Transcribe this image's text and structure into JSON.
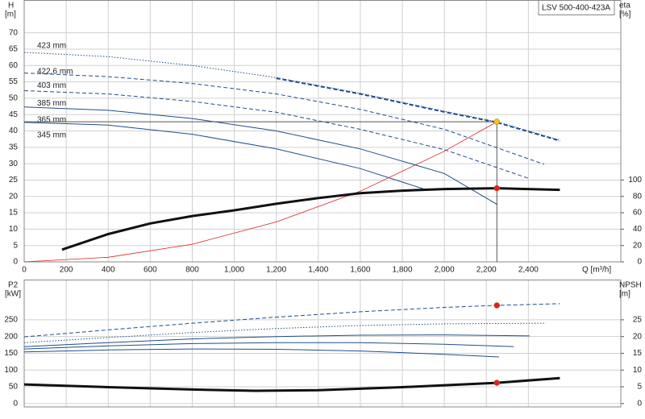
{
  "chart_data": [
    {
      "type": "line",
      "title": "LSV 500-400-423A",
      "ylabel": "H",
      "yunit": "[m]",
      "y2label": "eta",
      "y2unit": "[%]",
      "xlabel": "Q [m³/h]",
      "xlim": [
        0,
        2840
      ],
      "xticks": [
        0,
        200,
        400,
        600,
        800,
        {
          "value": 1000,
          "label": "1,000"
        },
        {
          "value": 1200,
          "label": "1,200"
        },
        {
          "value": 1400,
          "label": "1,400"
        },
        {
          "value": 1600,
          "label": "1,600"
        },
        {
          "value": 1800,
          "label": "1,800"
        },
        {
          "value": 2000,
          "label": "2,000"
        },
        {
          "value": 2200,
          "label": "2,200"
        },
        {
          "value": 2400,
          "label": "2,400"
        }
      ],
      "ylim": [
        0,
        80
      ],
      "yticks": [
        0,
        5,
        10,
        15,
        20,
        25,
        30,
        35,
        40,
        45,
        50,
        55,
        60,
        65,
        70
      ],
      "y2lim": [
        0,
        320
      ],
      "y2ticks": [
        0,
        20,
        40,
        60,
        80,
        100
      ],
      "grid": true,
      "series": [
        {
          "name": "423 mm",
          "color": "#1f4e8c",
          "style": "dotted",
          "x": [
            0,
            400,
            800,
            1200,
            1600,
            2000,
            2250,
            2550
          ],
          "values": [
            64,
            62.7,
            60,
            56.3,
            51.5,
            46,
            42.8,
            37.2
          ]
        },
        {
          "name": "422.6 mm",
          "color": "#1f4e8c",
          "style": "dashed",
          "width": 2,
          "x": [
            0,
            400,
            800,
            1200,
            1600,
            2000,
            2250,
            2550
          ],
          "values": [
            null,
            null,
            null,
            56.1,
            51.3,
            45.8,
            42.6,
            37
          ]
        },
        {
          "name": "403 mm",
          "color": "#1f4e8c",
          "style": "dashed",
          "x": [
            0,
            400,
            800,
            1200,
            1600,
            2000,
            2475
          ],
          "values": [
            57.7,
            56.6,
            54.5,
            51.3,
            46.6,
            40.5,
            29.8
          ]
        },
        {
          "name": "385 mm",
          "color": "#1f4e8c",
          "style": "dashed",
          "x": [
            0,
            400,
            800,
            1200,
            1600,
            2000,
            2406
          ],
          "values": [
            52.3,
            51.3,
            49,
            45.7,
            40.5,
            34.3,
            25.4
          ]
        },
        {
          "name": "365 mm",
          "color": "#1f4e8c",
          "style": "solid",
          "x": [
            0,
            400,
            800,
            1200,
            1600,
            2000,
            2253
          ],
          "values": [
            47.3,
            46.3,
            43.8,
            40,
            34.5,
            27,
            17.5
          ]
        },
        {
          "name": "345 mm",
          "color": "#1f4e8c",
          "style": "solid",
          "x": [
            0,
            400,
            800,
            1200,
            1600,
            1900
          ],
          "values": [
            42.6,
            41.8,
            39,
            34.5,
            28.5,
            22.3
          ]
        },
        {
          "color": "#e02020",
          "style": "solid",
          "width": 0.8,
          "x": [
            0,
            400,
            800,
            1200,
            1600,
            2000,
            2250
          ],
          "values": [
            0,
            1.4,
            5.4,
            12.2,
            21.6,
            33.8,
            42.8
          ]
        },
        {
          "color": "#111111",
          "style": "solid",
          "width": 3,
          "axis": "y2",
          "x": [
            180,
            400,
            600,
            800,
            1000,
            1200,
            1400,
            1600,
            1800,
            2000,
            2250,
            2550
          ],
          "values": [
            15,
            34,
            47,
            56,
            63,
            71,
            78,
            84,
            87,
            89,
            90,
            88
          ]
        }
      ],
      "markers": [
        {
          "x": 2250,
          "y": 42.8,
          "color": "#f5c518",
          "guides": true
        },
        {
          "x": 2250,
          "y": 90,
          "axis": "y2",
          "color": "#e02020"
        }
      ]
    },
    {
      "type": "line",
      "ylabel": "P2",
      "yunit": "[kW]",
      "y2label": "NPSH",
      "y2unit": "[m]",
      "xlim": [
        0,
        2840
      ],
      "xticks": [
        0,
        200,
        400,
        600,
        800,
        1000,
        1200,
        1400,
        1600,
        1800,
        2000,
        2200,
        2400
      ],
      "ylim": [
        -10,
        370
      ],
      "yticks": [
        0,
        50,
        100,
        150,
        200,
        250
      ],
      "y2lim": [
        -1,
        37
      ],
      "y2ticks": [
        0,
        5,
        10,
        15,
        20,
        25
      ],
      "grid": true,
      "series": [
        {
          "color": "#1f4e8c",
          "style": "dashed",
          "x": [
            0,
            400,
            800,
            1200,
            1600,
            2000,
            2250,
            2550
          ],
          "values": [
            199,
            220,
            240,
            258,
            274,
            287,
            293,
            298
          ]
        },
        {
          "color": "#1f4e8c",
          "style": "dotted",
          "x": [
            0,
            400,
            800,
            1200,
            1600,
            2000,
            2475
          ],
          "values": [
            182,
            197,
            212,
            224,
            233,
            238,
            240
          ]
        },
        {
          "color": "#1f4e8c",
          "style": "solid",
          "x": [
            0,
            400,
            800,
            1200,
            1600,
            2000,
            2406
          ],
          "values": [
            170,
            182,
            193,
            200,
            204,
            205,
            202
          ]
        },
        {
          "color": "#1f4e8c",
          "style": "solid",
          "x": [
            0,
            400,
            800,
            1200,
            1600,
            2000,
            2330
          ],
          "values": [
            163,
            172,
            179,
            182,
            182,
            177,
            170
          ]
        },
        {
          "color": "#1f4e8c",
          "style": "solid",
          "x": [
            0,
            400,
            800,
            1200,
            1600,
            2000,
            2260
          ],
          "values": [
            154,
            160,
            163,
            162,
            157,
            147,
            139
          ]
        },
        {
          "color": "#111111",
          "style": "solid",
          "width": 3,
          "axis": "y2",
          "x": [
            0,
            400,
            800,
            1100,
            1400,
            1800,
            2250,
            2550
          ],
          "values": [
            5.7,
            4.9,
            4.2,
            3.8,
            4,
            4.9,
            6.2,
            7.6
          ]
        }
      ],
      "markers": [
        {
          "x": 2250,
          "y": 293,
          "color": "#e02020"
        },
        {
          "x": 2250,
          "y": 6.2,
          "axis": "y2",
          "color": "#e02020"
        }
      ]
    }
  ]
}
